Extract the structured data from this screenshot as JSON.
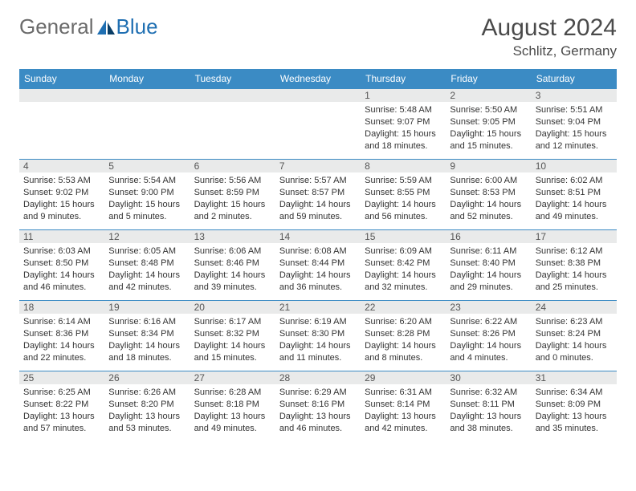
{
  "logo": {
    "text1": "General",
    "text2": "Blue"
  },
  "title": "August 2024",
  "location": "Schlitz, Germany",
  "colors": {
    "header_bg": "#3b8bc4",
    "header_text": "#ffffff",
    "band_bg": "#e9eaea",
    "rule": "#3b8bc4",
    "body_text": "#333333",
    "daynum_text": "#555555",
    "title_text": "#4a4a4a",
    "logo_gray": "#6b6b6b",
    "logo_blue": "#1f6fb2"
  },
  "day_headers": [
    "Sunday",
    "Monday",
    "Tuesday",
    "Wednesday",
    "Thursday",
    "Friday",
    "Saturday"
  ],
  "weeks": [
    [
      null,
      null,
      null,
      null,
      {
        "n": "1",
        "sr": "Sunrise: 5:48 AM",
        "ss": "Sunset: 9:07 PM",
        "d1": "Daylight: 15 hours",
        "d2": "and 18 minutes."
      },
      {
        "n": "2",
        "sr": "Sunrise: 5:50 AM",
        "ss": "Sunset: 9:05 PM",
        "d1": "Daylight: 15 hours",
        "d2": "and 15 minutes."
      },
      {
        "n": "3",
        "sr": "Sunrise: 5:51 AM",
        "ss": "Sunset: 9:04 PM",
        "d1": "Daylight: 15 hours",
        "d2": "and 12 minutes."
      }
    ],
    [
      {
        "n": "4",
        "sr": "Sunrise: 5:53 AM",
        "ss": "Sunset: 9:02 PM",
        "d1": "Daylight: 15 hours",
        "d2": "and 9 minutes."
      },
      {
        "n": "5",
        "sr": "Sunrise: 5:54 AM",
        "ss": "Sunset: 9:00 PM",
        "d1": "Daylight: 15 hours",
        "d2": "and 5 minutes."
      },
      {
        "n": "6",
        "sr": "Sunrise: 5:56 AM",
        "ss": "Sunset: 8:59 PM",
        "d1": "Daylight: 15 hours",
        "d2": "and 2 minutes."
      },
      {
        "n": "7",
        "sr": "Sunrise: 5:57 AM",
        "ss": "Sunset: 8:57 PM",
        "d1": "Daylight: 14 hours",
        "d2": "and 59 minutes."
      },
      {
        "n": "8",
        "sr": "Sunrise: 5:59 AM",
        "ss": "Sunset: 8:55 PM",
        "d1": "Daylight: 14 hours",
        "d2": "and 56 minutes."
      },
      {
        "n": "9",
        "sr": "Sunrise: 6:00 AM",
        "ss": "Sunset: 8:53 PM",
        "d1": "Daylight: 14 hours",
        "d2": "and 52 minutes."
      },
      {
        "n": "10",
        "sr": "Sunrise: 6:02 AM",
        "ss": "Sunset: 8:51 PM",
        "d1": "Daylight: 14 hours",
        "d2": "and 49 minutes."
      }
    ],
    [
      {
        "n": "11",
        "sr": "Sunrise: 6:03 AM",
        "ss": "Sunset: 8:50 PM",
        "d1": "Daylight: 14 hours",
        "d2": "and 46 minutes."
      },
      {
        "n": "12",
        "sr": "Sunrise: 6:05 AM",
        "ss": "Sunset: 8:48 PM",
        "d1": "Daylight: 14 hours",
        "d2": "and 42 minutes."
      },
      {
        "n": "13",
        "sr": "Sunrise: 6:06 AM",
        "ss": "Sunset: 8:46 PM",
        "d1": "Daylight: 14 hours",
        "d2": "and 39 minutes."
      },
      {
        "n": "14",
        "sr": "Sunrise: 6:08 AM",
        "ss": "Sunset: 8:44 PM",
        "d1": "Daylight: 14 hours",
        "d2": "and 36 minutes."
      },
      {
        "n": "15",
        "sr": "Sunrise: 6:09 AM",
        "ss": "Sunset: 8:42 PM",
        "d1": "Daylight: 14 hours",
        "d2": "and 32 minutes."
      },
      {
        "n": "16",
        "sr": "Sunrise: 6:11 AM",
        "ss": "Sunset: 8:40 PM",
        "d1": "Daylight: 14 hours",
        "d2": "and 29 minutes."
      },
      {
        "n": "17",
        "sr": "Sunrise: 6:12 AM",
        "ss": "Sunset: 8:38 PM",
        "d1": "Daylight: 14 hours",
        "d2": "and 25 minutes."
      }
    ],
    [
      {
        "n": "18",
        "sr": "Sunrise: 6:14 AM",
        "ss": "Sunset: 8:36 PM",
        "d1": "Daylight: 14 hours",
        "d2": "and 22 minutes."
      },
      {
        "n": "19",
        "sr": "Sunrise: 6:16 AM",
        "ss": "Sunset: 8:34 PM",
        "d1": "Daylight: 14 hours",
        "d2": "and 18 minutes."
      },
      {
        "n": "20",
        "sr": "Sunrise: 6:17 AM",
        "ss": "Sunset: 8:32 PM",
        "d1": "Daylight: 14 hours",
        "d2": "and 15 minutes."
      },
      {
        "n": "21",
        "sr": "Sunrise: 6:19 AM",
        "ss": "Sunset: 8:30 PM",
        "d1": "Daylight: 14 hours",
        "d2": "and 11 minutes."
      },
      {
        "n": "22",
        "sr": "Sunrise: 6:20 AM",
        "ss": "Sunset: 8:28 PM",
        "d1": "Daylight: 14 hours",
        "d2": "and 8 minutes."
      },
      {
        "n": "23",
        "sr": "Sunrise: 6:22 AM",
        "ss": "Sunset: 8:26 PM",
        "d1": "Daylight: 14 hours",
        "d2": "and 4 minutes."
      },
      {
        "n": "24",
        "sr": "Sunrise: 6:23 AM",
        "ss": "Sunset: 8:24 PM",
        "d1": "Daylight: 14 hours",
        "d2": "and 0 minutes."
      }
    ],
    [
      {
        "n": "25",
        "sr": "Sunrise: 6:25 AM",
        "ss": "Sunset: 8:22 PM",
        "d1": "Daylight: 13 hours",
        "d2": "and 57 minutes."
      },
      {
        "n": "26",
        "sr": "Sunrise: 6:26 AM",
        "ss": "Sunset: 8:20 PM",
        "d1": "Daylight: 13 hours",
        "d2": "and 53 minutes."
      },
      {
        "n": "27",
        "sr": "Sunrise: 6:28 AM",
        "ss": "Sunset: 8:18 PM",
        "d1": "Daylight: 13 hours",
        "d2": "and 49 minutes."
      },
      {
        "n": "28",
        "sr": "Sunrise: 6:29 AM",
        "ss": "Sunset: 8:16 PM",
        "d1": "Daylight: 13 hours",
        "d2": "and 46 minutes."
      },
      {
        "n": "29",
        "sr": "Sunrise: 6:31 AM",
        "ss": "Sunset: 8:14 PM",
        "d1": "Daylight: 13 hours",
        "d2": "and 42 minutes."
      },
      {
        "n": "30",
        "sr": "Sunrise: 6:32 AM",
        "ss": "Sunset: 8:11 PM",
        "d1": "Daylight: 13 hours",
        "d2": "and 38 minutes."
      },
      {
        "n": "31",
        "sr": "Sunrise: 6:34 AM",
        "ss": "Sunset: 8:09 PM",
        "d1": "Daylight: 13 hours",
        "d2": "and 35 minutes."
      }
    ]
  ]
}
